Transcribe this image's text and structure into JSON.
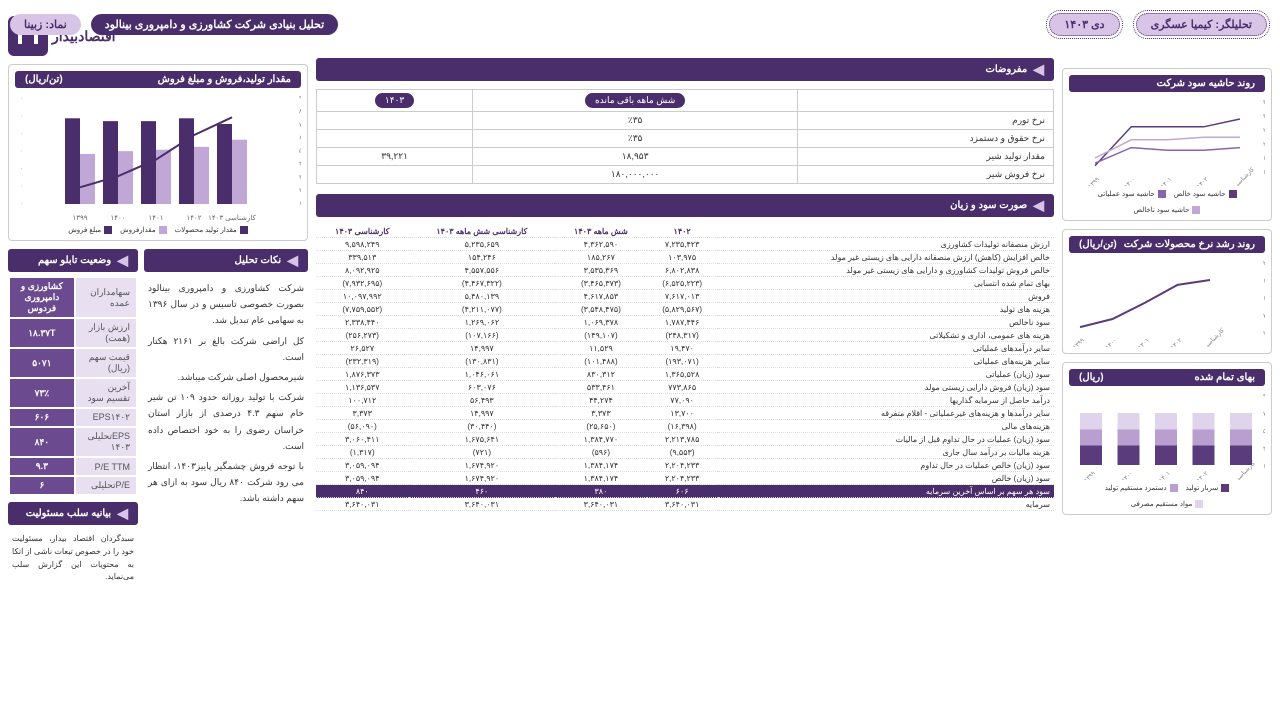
{
  "header": {
    "title": "تحلیل بنیادی شرکت کشاورزی و دامپروری بینالود",
    "symbol_label": "نماد: زبینا",
    "analyst": "تحلیلگر: کیمیا عسگری",
    "date": "دی ۱۴۰۳"
  },
  "logo_text": "اقتصادبیدار",
  "right": {
    "margin_trend": {
      "title": "روند حاشیه سود شرکت",
      "y_ticks": [
        "۳۵٪",
        "۳۰٪",
        "۲۵٪",
        "۲۰٪",
        "۱۵٪",
        "۱۰٪"
      ],
      "x_labels": [
        "۱۳۹۹",
        "۱۴۰۰",
        "۱۴۰۱",
        "۱۴۰۲",
        "کارشناسی ۱۴۰۳"
      ],
      "legend": [
        "حاشیه سود خالص",
        "حاشیه سود عملیاتی",
        "حاشیه سود ناخالص"
      ],
      "colors": {
        "l1": "#5a3c7d",
        "l2": "#8865ab",
        "l3": "#c1a7d6"
      },
      "series": {
        "gross": [
          15,
          22,
          22,
          23,
          23
        ],
        "oper": [
          13,
          19,
          18,
          18,
          19
        ],
        "net": [
          12,
          27,
          27,
          27,
          30
        ]
      }
    },
    "price_trend": {
      "title": "روند رشد نرخ محصولات شرکت",
      "unit": "(تن/ریال)",
      "y_ticks": [
        "۲۲۰,۰۰۰,۰۰۰",
        "۱۷۰,۰۰۰,۰۰۰",
        "۱۲۰,۰۰۰,۰۰۰",
        "۷۰,۰۰۰,۰۰۰",
        "۲۰,۰۰۰,۰۰۰"
      ],
      "x_labels": [
        "۱۳۹۹",
        "۱۴۰۰",
        "۱۴۰۱",
        "۱۴۰۲",
        "کارشناسی ۱۴۰۳"
      ],
      "values": [
        35,
        60,
        110,
        165,
        180
      ],
      "color": "#5a3c7d"
    },
    "cogs": {
      "title": "بهای تمام شده",
      "unit": "(ریال)",
      "y_ticks": [
        "۹۰٪",
        "۷۰٪",
        "۵۰٪",
        "۳۰٪",
        "۱۰٪"
      ],
      "x_labels": [
        "۱۳۹۹",
        "۱۴۰۰",
        "۱۴۰۱",
        "۱۴۰۲",
        "کارشناسی ۱۴۰۳"
      ],
      "legend": [
        "سربار تولید",
        "دستمزد مستقیم تولید",
        "مواد مستقیم مصرفی"
      ],
      "colors": {
        "s1": "#5a3c7d",
        "s2": "#b89fd0",
        "s3": "#e0d4ec"
      },
      "stack": [
        [
          30,
          25,
          25
        ],
        [
          30,
          25,
          25
        ],
        [
          30,
          25,
          25
        ],
        [
          30,
          25,
          25
        ],
        [
          30,
          25,
          25
        ]
      ]
    }
  },
  "center": {
    "assumptions": {
      "title": "مفروضات",
      "col1": "شش ماهه باقی مانده",
      "col2": "۱۴۰۳",
      "rows": [
        {
          "label": "نرخ تورم",
          "v1": "٪۳۵",
          "v2": ""
        },
        {
          "label": "نرخ حقوق و دستمزد",
          "v1": "٪۳۵",
          "v2": ""
        },
        {
          "label": "مقدار تولید شیر",
          "v1": "۱۸,۹۵۳",
          "v2": "۳۹,۲۲۱"
        },
        {
          "label": "نرخ فروش شیر",
          "v1": "۱۸۰,۰۰۰,۰۰۰",
          "v2": ""
        }
      ]
    },
    "income": {
      "title": "صورت سود و زیان",
      "columns": [
        "",
        "۱۴۰۲",
        "شش ماهه ۱۴۰۳",
        "کارشناسی شش ماهه ۱۴۰۳",
        "کارشناسی ۱۴۰۳"
      ],
      "rows": [
        {
          "l": "ارزش منصفانه تولیدات کشاورزی",
          "c": [
            "۷,۲۳۵,۴۲۳",
            "۴,۳۶۲,۵۹۰",
            "۵,۲۳۵,۶۵۹",
            "۹,۵۹۸,۲۴۹"
          ]
        },
        {
          "l": "خالص افزایش (کاهش) ارزش منصفانه دارایی های زیستی غیر مولد",
          "c": [
            "۱۰۳,۹۷۵",
            "۱۸۵,۲۶۷",
            "۱۵۴,۲۴۶",
            "۳۳۹,۵۱۳"
          ]
        },
        {
          "l": "خالص فروش تولیدات کشاورزی و دارایی های زیستی غیر مولد",
          "c": [
            "۶,۸۰۲,۸۳۸",
            "۳,۵۳۵,۳۶۹",
            "۴,۵۵۷,۵۵۶",
            "۸,۰۹۲,۹۲۵"
          ]
        },
        {
          "l": "بهای تمام شده انتسابی",
          "c": [
            "(۶,۵۲۵,۲۲۳)",
            "(۳,۴۶۵,۳۷۳)",
            "(۴,۴۶۷,۳۲۲)",
            "(۷,۹۳۲,۶۹۵)"
          ]
        },
        {
          "l": "فروش",
          "c": [
            "۷,۶۱۷,۰۱۳",
            "۴,۶۱۷,۸۵۳",
            "۵,۴۸۰,۱۳۹",
            "۱۰,۰۹۷,۹۹۲"
          ]
        },
        {
          "l": "هزینه های تولید",
          "c": [
            "(۵,۸۲۹,۵۶۷)",
            "(۳,۵۴۸,۴۷۵)",
            "(۴,۲۱۱,۰۷۷)",
            "(۷,۷۵۹,۵۵۲)"
          ]
        },
        {
          "l": "سود ناخالص",
          "c": [
            "۱,۷۸۷,۴۴۶",
            "۱,۰۶۹,۳۷۸",
            "۱,۲۶۹,۰۶۲",
            "۲,۳۳۸,۴۴۰"
          ]
        },
        {
          "l": "هزینه های عمومی، اداری و تشکیلاتی",
          "c": [
            "(۲۴۸,۳۱۷)",
            "(۱۴۹,۱۰۷)",
            "(۱۰۷,۱۶۶)",
            "(۲۵۶,۲۷۳)"
          ]
        },
        {
          "l": "سایر درآمدهای عملیاتی",
          "c": [
            "۱۹,۴۷۰",
            "۱۱,۵۲۹",
            "۱۴,۹۹۷",
            "۲۶,۵۲۷"
          ]
        },
        {
          "l": "سایر هزینه‌های عملیاتی",
          "c": [
            "(۱۹۳,۰۷۱)",
            "(۱۰۱,۴۸۸)",
            "(۱۳۰,۸۳۱)",
            "(۲۳۲,۳۱۹)"
          ]
        },
        {
          "l": "سود (زیان) عملیاتی",
          "c": [
            "۱,۳۶۵,۵۲۸",
            "۸۳۰,۳۱۲",
            "۱,۰۴۶,۰۶۱",
            "۱,۸۷۶,۳۷۳"
          ]
        },
        {
          "l": "سود (زیان) فروش دارایی زیستی مولد",
          "c": [
            "۷۷۳,۸۶۵",
            "۵۳۳,۴۶۱",
            "۶۰۳,۰۷۶",
            "۱,۱۳۶,۵۳۷"
          ]
        },
        {
          "l": "درآمد حاصل از سرمایه گذاریها",
          "c": [
            "۷۷,۰۹۰",
            "۴۴,۲۷۴",
            "۵۶,۴۹۳",
            "۱۰۰,۷۱۲"
          ]
        },
        {
          "l": "سایر درآمدها و هزینه‌های غیرعملیاتی - اقلام متفرقه",
          "c": [
            "۱۳,۷۰۰",
            "۳,۳۷۳",
            "۱۴,۹۹۷",
            "۳,۳۷۳"
          ]
        },
        {
          "l": "هزینه‌های مالی",
          "c": [
            "(۱۶,۳۹۸)",
            "(۲۵,۶۵۰)",
            "(۳۰,۴۴۰)",
            "(۵۶,۰۹۰)"
          ]
        },
        {
          "l": "سود (زیان) عملیات در حال تداوم قبل از مالیات",
          "c": [
            "۲,۲۱۳,۷۸۵",
            "۱,۳۸۴,۷۷۰",
            "۱,۶۷۵,۶۴۱",
            "۳,۰۶۰,۴۱۱"
          ]
        },
        {
          "l": "هزینه مالیات بر درآمد سال جاری",
          "c": [
            "(۹,۵۵۳)",
            "(۵۹۶)",
            "(۷۲۱)",
            "(۱,۳۱۷)"
          ]
        },
        {
          "l": "سود (زیان) خالص عملیات در حال تداوم",
          "c": [
            "۲,۲۰۴,۲۳۳",
            "۱,۳۸۴,۱۷۴",
            "۱,۶۷۴,۹۲۰",
            "۳,۰۵۹,۰۹۴"
          ]
        },
        {
          "l": "سود (زیان) خالص",
          "c": [
            "۲,۲۰۴,۲۳۳",
            "۱,۳۸۴,۱۷۴",
            "۱,۶۷۴,۹۲۰",
            "۳,۰۵۹,۰۹۴"
          ]
        },
        {
          "l": "سود هر سهم بر اساس آخرین سرمایه",
          "c": [
            "۶۰۶",
            "۳۸۰",
            "۴۶۰",
            "۸۴۰"
          ],
          "hl": true
        },
        {
          "l": "سرمایه",
          "c": [
            "۳,۶۴۰,۰۳۱",
            "۳,۶۴۰,۰۳۱",
            "۳,۶۴۰,۰۳۱",
            "۳,۶۴۰,۰۳۱"
          ]
        }
      ]
    }
  },
  "left": {
    "prod_chart": {
      "title": "مقدار تولید،فروش و مبلغ فروش",
      "unit": "(تن/ریال)",
      "y_left": [
        "۷۰,۰۰۰",
        "۶۰,۰۰۰",
        "۵۰,۰۰۰",
        "۴۰,۰۰۰",
        "۳۰,۰۰۰",
        "۲۰,۰۰۰",
        "۱۰,۰۰۰"
      ],
      "y_right": [
        "۹,۰۰۰,۰۰۰",
        "۸,۰۰۰,۰۰۰",
        "۷,۰۰۰,۰۰۰",
        "۶,۰۰۰,۰۰۰",
        "۵,۰۰۰,۰۰۰",
        "۴,۰۰۰,۰۰۰",
        "۳,۰۰۰,۰۰۰",
        "۲,۰۰۰,۰۰۰",
        "۱,۰۰۰,۰۰۰"
      ],
      "x_labels": [
        "۱۳۹۹",
        "۱۴۰۰",
        "۱۴۰۱",
        "۱۴۰۲",
        "کارشناسی ۱۴۰۳"
      ],
      "legend": [
        "مقدار تولید محصولات",
        "مقدارفروش",
        "مبلغ فروش"
      ],
      "colors": {
        "b1": "#4a2d6b",
        "b2": "#c1a7d6",
        "line": "#4a2d6b"
      },
      "prod": [
        60,
        58,
        58,
        60,
        56
      ],
      "sales_q": [
        35,
        37,
        38,
        40,
        45
      ],
      "sales_v": [
        15,
        25,
        40,
        62,
        78
      ]
    },
    "stock": {
      "title": "وضعیت تابلو سهم",
      "rows": [
        {
          "k": "سهامداران عمده",
          "v": "کشاورزی و دامپروری فردوس"
        },
        {
          "k": "ارزش بازار (همت)",
          "v": "۱۸.۳۷T"
        },
        {
          "k": "قیمت سهم (ریال)",
          "v": "۵۰۷۱"
        },
        {
          "k": "آخرین تقسیم سود",
          "v": "۷۳٪"
        },
        {
          "k": "EPS۱۴۰۲",
          "v": "۶۰۶"
        },
        {
          "k": "EPSتحلیلی ۱۴۰۳",
          "v": "۸۴۰"
        },
        {
          "k": "P/E TTM",
          "v": "۹.۳"
        },
        {
          "k": "P/Eتحلیلی",
          "v": "۶"
        }
      ]
    },
    "analysis": {
      "title": "نکات تحلیل",
      "text": "شرکت کشاورزی و دامپروری بینالود بصورت خصوصی تاسیس و در سال ۱۳۹۶ به سهامی عام تبدیل شد.\nکل اراضی شرکت بالغ بر ۲۱۶۱ هکتار است.\nشیرمحصول اصلی شرکت میباشد.\nشرکت با تولید روزانه حدود ۱۰۹ تن شیر خام سهم ۴.۳ درصدی از بازار استان خراسان رضوی را به خود اختصاص داده است.\nبا توجه فروش چشمگیر پاییز۱۴۰۳، انتظار می رود شرکت ۸۴۰ ریال سود به ازای هر سهم داشته باشد."
    },
    "disclaimer": {
      "title": "بیانیه سلب مسئولیت",
      "text": "سبدگردان اقتصاد بیدار، مسئولیت خود را در خصوص تبعات ناشی از اتکا به محتویات این گزارش سلب می‌نماید."
    }
  }
}
